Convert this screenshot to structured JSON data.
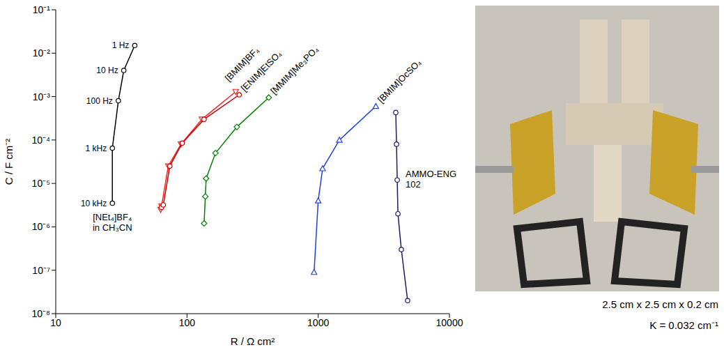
{
  "chart_data": {
    "type": "line",
    "x_label": "R / Ω cm²",
    "y_label": "C / F cm⁻²",
    "log": true,
    "grid": false,
    "xlim": [
      10,
      10000
    ],
    "xticks": [
      10,
      100,
      1000,
      10000
    ],
    "ylim": [
      1e-08,
      0.1
    ],
    "yticks": [
      {
        "value": 1e-08,
        "label": "10⁻⁸"
      },
      {
        "value": 1e-07,
        "label": "10⁻⁷"
      },
      {
        "value": 1e-06,
        "label": "10⁻⁶"
      },
      {
        "value": 1e-05,
        "label": "10⁻⁵"
      },
      {
        "value": 0.0001,
        "label": "10⁻⁴"
      },
      {
        "value": 0.001,
        "label": "10⁻³"
      },
      {
        "value": 0.01,
        "label": "10⁻²"
      },
      {
        "value": 0.1,
        "label": "10⁻¹"
      }
    ],
    "series": [
      {
        "name": "[NEt₄]BF₄ in CH₃CN",
        "color": "#000000",
        "marker": "circle",
        "x": [
          27,
          27,
          30,
          33,
          40
        ],
        "values": [
          3.5e-06,
          6.5e-05,
          0.0008,
          0.004,
          0.015
        ],
        "point_labels": [
          "10 kHz",
          "1 kHz",
          "100 Hz",
          "10 Hz",
          "1 Hz"
        ]
      },
      {
        "name": "[BMIM]BF₄",
        "color": "#ff2020",
        "marker": "triangle-down",
        "x": [
          63,
          64,
          72,
          90,
          130,
          235
        ],
        "values": [
          2.5e-06,
          3e-06,
          2.5e-05,
          8e-05,
          0.0003,
          0.0013
        ]
      },
      {
        "name": "[ENIM]EtSO₄",
        "color": "#c00000",
        "marker": "circle",
        "x": [
          64,
          66,
          74,
          92,
          135,
          250
        ],
        "values": [
          2.8e-06,
          3.2e-06,
          2.5e-05,
          8.5e-05,
          0.0003,
          0.0011
        ]
      },
      {
        "name": "[MMIM]Me₃PO₄",
        "color": "#008000",
        "marker": "diamond",
        "x": [
          135,
          138,
          140,
          165,
          240,
          420
        ],
        "values": [
          1.2e-06,
          5e-06,
          1.3e-05,
          5e-05,
          0.0002,
          0.00095
        ]
      },
      {
        "name": "[BMIM]OcSO₄",
        "color": "#2040e0",
        "marker": "triangle",
        "x": [
          930,
          1000,
          1080,
          1450,
          2750
        ],
        "values": [
          9e-08,
          4e-06,
          2.2e-05,
          0.0001,
          0.0006
        ]
      },
      {
        "name": "AMMO-ENG 102",
        "color": "#1a1a6e",
        "marker": "circle",
        "x": [
          4800,
          4300,
          4050,
          4000,
          3950,
          3900
        ],
        "values": [
          2e-08,
          3e-07,
          2e-06,
          1.2e-05,
          8e-05,
          0.00043
        ]
      }
    ]
  },
  "photo": {
    "caption": [
      "2.5 cm x 2.5 cm x 0.2 cm",
      "K = 0.032 cm⁻¹"
    ]
  }
}
